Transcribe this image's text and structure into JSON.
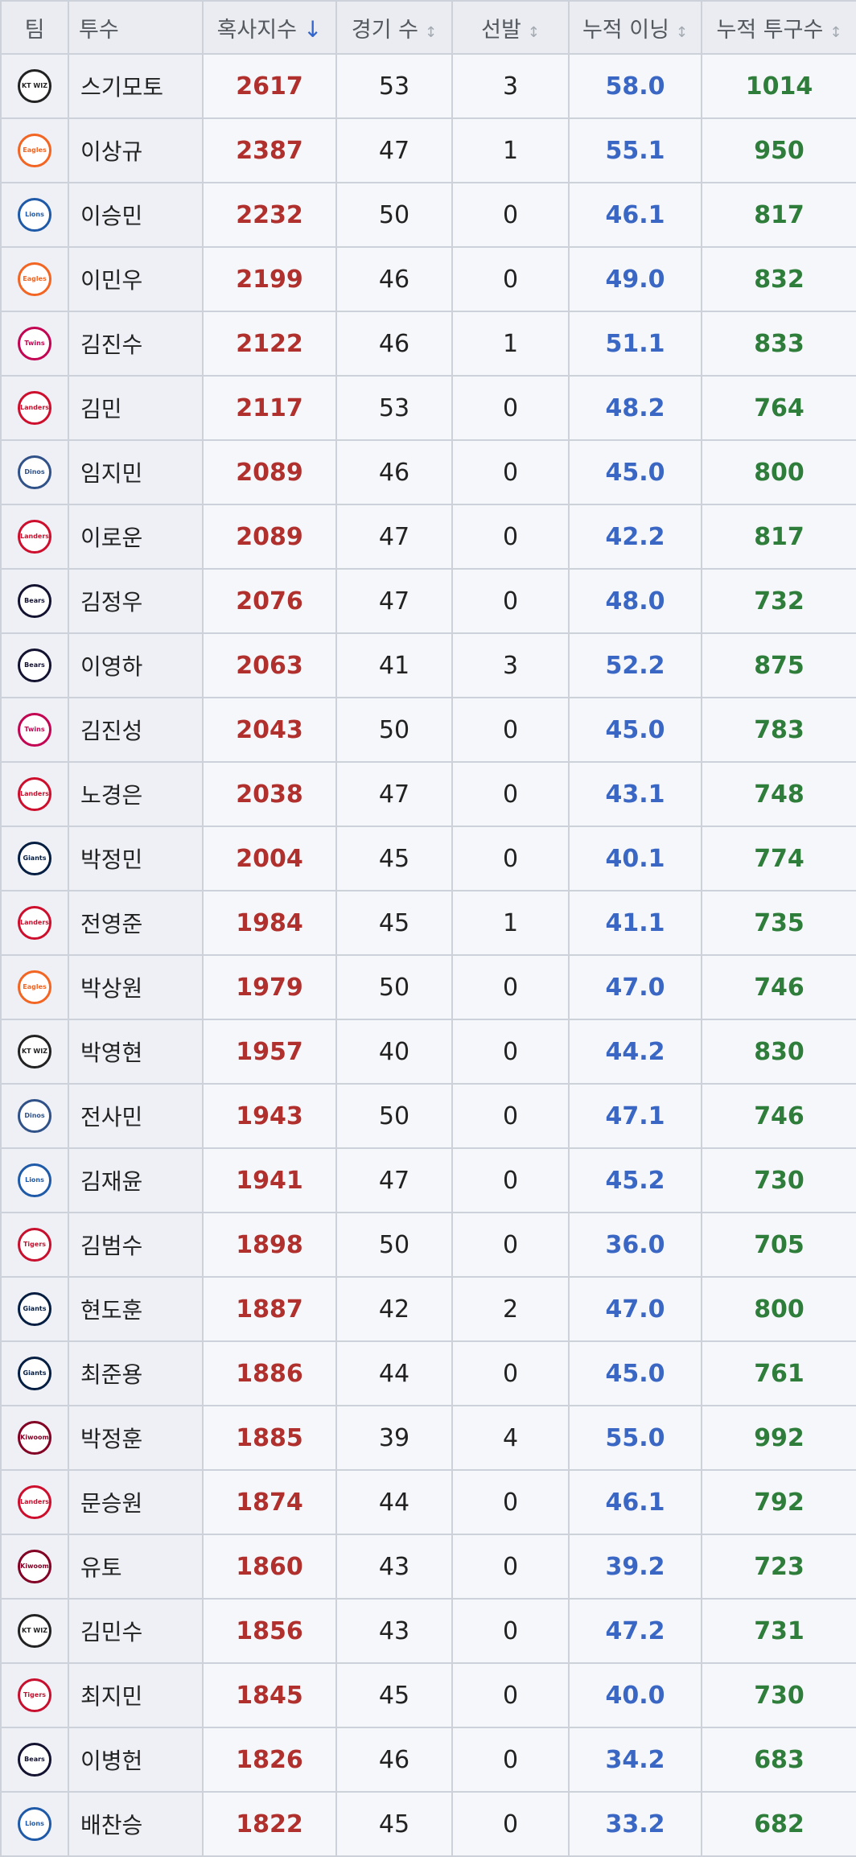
{
  "table": {
    "headers": [
      "팀",
      "투수",
      "혹사지수",
      "경기 수",
      "선발",
      "누적 이닝",
      "누적 투구수"
    ],
    "rows": [
      {
        "team": "KT WIZ",
        "color": "#222222",
        "pitcher": "스기모토",
        "index": 2617,
        "games": 53,
        "starts": 3,
        "innings": "58.0",
        "pitches": 1014
      },
      {
        "team": "Eagles",
        "color": "#f26522",
        "pitcher": "이상규",
        "index": 2387,
        "games": 47,
        "starts": 1,
        "innings": "55.1",
        "pitches": 950
      },
      {
        "team": "Lions",
        "color": "#1f5aa8",
        "pitcher": "이승민",
        "index": 2232,
        "games": 50,
        "starts": 0,
        "innings": "46.1",
        "pitches": 817
      },
      {
        "team": "Eagles",
        "color": "#f26522",
        "pitcher": "이민우",
        "index": 2199,
        "games": 46,
        "starts": 0,
        "innings": "49.0",
        "pitches": 832
      },
      {
        "team": "Twins",
        "color": "#c30452",
        "pitcher": "김진수",
        "index": 2122,
        "games": 46,
        "starts": 1,
        "innings": "51.1",
        "pitches": 833
      },
      {
        "team": "Landers",
        "color": "#ce0e2d",
        "pitcher": "김민",
        "index": 2117,
        "games": 53,
        "starts": 0,
        "innings": "48.2",
        "pitches": 764
      },
      {
        "team": "Dinos",
        "color": "#315288",
        "pitcher": "임지민",
        "index": 2089,
        "games": 46,
        "starts": 0,
        "innings": "45.0",
        "pitches": 800
      },
      {
        "team": "Landers",
        "color": "#ce0e2d",
        "pitcher": "이로운",
        "index": 2089,
        "games": 47,
        "starts": 0,
        "innings": "42.2",
        "pitches": 817
      },
      {
        "team": "Bears",
        "color": "#131230",
        "pitcher": "김정우",
        "index": 2076,
        "games": 47,
        "starts": 0,
        "innings": "48.0",
        "pitches": 732
      },
      {
        "team": "Bears",
        "color": "#131230",
        "pitcher": "이영하",
        "index": 2063,
        "games": 41,
        "starts": 3,
        "innings": "52.2",
        "pitches": 875
      },
      {
        "team": "Twins",
        "color": "#c30452",
        "pitcher": "김진성",
        "index": 2043,
        "games": 50,
        "starts": 0,
        "innings": "45.0",
        "pitches": 783
      },
      {
        "team": "Landers",
        "color": "#ce0e2d",
        "pitcher": "노경은",
        "index": 2038,
        "games": 47,
        "starts": 0,
        "innings": "43.1",
        "pitches": 748
      },
      {
        "team": "Giants",
        "color": "#041e42",
        "pitcher": "박정민",
        "index": 2004,
        "games": 45,
        "starts": 0,
        "innings": "40.1",
        "pitches": 774
      },
      {
        "team": "Landers",
        "color": "#ce0e2d",
        "pitcher": "전영준",
        "index": 1984,
        "games": 45,
        "starts": 1,
        "innings": "41.1",
        "pitches": 735
      },
      {
        "team": "Eagles",
        "color": "#f26522",
        "pitcher": "박상원",
        "index": 1979,
        "games": 50,
        "starts": 0,
        "innings": "47.0",
        "pitches": 746
      },
      {
        "team": "KT WIZ",
        "color": "#222222",
        "pitcher": "박영현",
        "index": 1957,
        "games": 40,
        "starts": 0,
        "innings": "44.2",
        "pitches": 830
      },
      {
        "team": "Dinos",
        "color": "#315288",
        "pitcher": "전사민",
        "index": 1943,
        "games": 50,
        "starts": 0,
        "innings": "47.1",
        "pitches": 746
      },
      {
        "team": "Lions",
        "color": "#1f5aa8",
        "pitcher": "김재윤",
        "index": 1941,
        "games": 47,
        "starts": 0,
        "innings": "45.2",
        "pitches": 730
      },
      {
        "team": "Tigers",
        "color": "#c8102e",
        "pitcher": "김범수",
        "index": 1898,
        "games": 50,
        "starts": 0,
        "innings": "36.0",
        "pitches": 705
      },
      {
        "team": "Giants",
        "color": "#041e42",
        "pitcher": "현도훈",
        "index": 1887,
        "games": 42,
        "starts": 2,
        "innings": "47.0",
        "pitches": 800
      },
      {
        "team": "Giants",
        "color": "#041e42",
        "pitcher": "최준용",
        "index": 1886,
        "games": 44,
        "starts": 0,
        "innings": "45.0",
        "pitches": 761
      },
      {
        "team": "Kiwoom",
        "color": "#820024",
        "pitcher": "박정훈",
        "index": 1885,
        "games": 39,
        "starts": 4,
        "innings": "55.0",
        "pitches": 992
      },
      {
        "team": "Landers",
        "color": "#ce0e2d",
        "pitcher": "문승원",
        "index": 1874,
        "games": 44,
        "starts": 0,
        "innings": "46.1",
        "pitches": 792
      },
      {
        "team": "Kiwoom",
        "color": "#820024",
        "pitcher": "유토",
        "index": 1860,
        "games": 43,
        "starts": 0,
        "innings": "39.2",
        "pitches": 723
      },
      {
        "team": "KT WIZ",
        "color": "#222222",
        "pitcher": "김민수",
        "index": 1856,
        "games": 43,
        "starts": 0,
        "innings": "47.2",
        "pitches": 731
      },
      {
        "team": "Tigers",
        "color": "#c8102e",
        "pitcher": "최지민",
        "index": 1845,
        "games": 45,
        "starts": 0,
        "innings": "40.0",
        "pitches": 730
      },
      {
        "team": "Bears",
        "color": "#131230",
        "pitcher": "이병헌",
        "index": 1826,
        "games": 46,
        "starts": 0,
        "innings": "34.2",
        "pitches": 683
      },
      {
        "team": "Lions",
        "color": "#1f5aa8",
        "pitcher": "배찬승",
        "index": 1822,
        "games": 45,
        "starts": 0,
        "innings": "33.2",
        "pitches": 682
      }
    ]
  }
}
